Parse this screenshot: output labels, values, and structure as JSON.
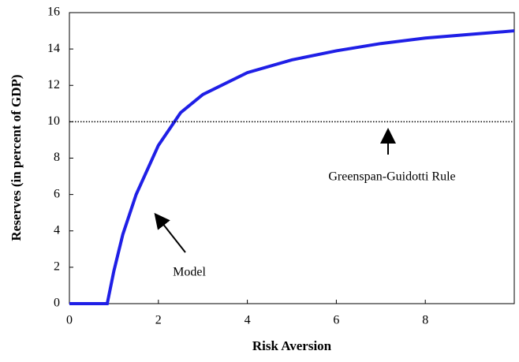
{
  "chart_data": {
    "type": "line",
    "x_label": "Risk Aversion",
    "y_label": "Reserves (in percent of GDP)",
    "x": [
      0,
      0.85,
      1,
      1.2,
      1.5,
      2,
      2.5,
      3,
      4,
      5,
      6,
      7,
      8,
      9,
      10
    ],
    "series": [
      {
        "name": "Model",
        "color": "#1f1fe6",
        "style": "solid",
        "values": [
          0,
          0,
          1.8,
          3.8,
          6.0,
          8.7,
          10.5,
          11.5,
          12.7,
          13.4,
          13.9,
          14.3,
          14.6,
          14.8,
          15.0
        ]
      },
      {
        "name": "Greenspan-Guidotti Rule",
        "color": "#000000",
        "style": "dotted",
        "values": [
          10,
          10,
          10,
          10,
          10,
          10,
          10,
          10,
          10,
          10,
          10,
          10,
          10,
          10,
          10
        ]
      }
    ],
    "xlim": [
      0,
      10
    ],
    "xticks": [
      0,
      2,
      4,
      6,
      8
    ],
    "ylim": [
      0,
      16
    ],
    "yticks": [
      0,
      2,
      4,
      6,
      8,
      10,
      12,
      14,
      16
    ],
    "grid": false
  }
}
